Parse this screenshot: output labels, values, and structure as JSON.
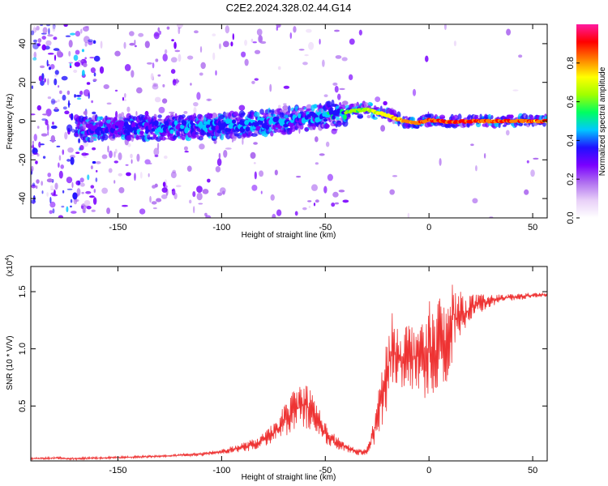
{
  "figure": {
    "title": "C2E2.2024.328.02.44.G14"
  },
  "chart_data": [
    {
      "type": "heatmap",
      "panel": "spectrogram",
      "title": "C2E2.2024.328.02.44.G14",
      "xlabel": "Height of straight line (km)",
      "ylabel": "Frequency (Hz)",
      "xlim": [
        -192,
        57
      ],
      "ylim": [
        -50,
        50
      ],
      "xticks": [
        -150,
        -100,
        -50,
        0,
        50
      ],
      "xtick_labels": [
        "-150",
        "-100",
        "-50",
        "0",
        "50"
      ],
      "yticks": [
        -40,
        -20,
        0,
        20,
        40
      ],
      "ytick_labels": [
        "-40",
        "-20",
        "0",
        "20",
        "40"
      ],
      "colorbar": {
        "label": "Normalized spectral amplitude",
        "range": [
          0.0,
          1.0
        ],
        "ticks": [
          0.0,
          0.2,
          0.4,
          0.6,
          0.8
        ],
        "tick_labels": [
          "0.0",
          "0.2",
          "0.4",
          "0.6",
          "0.8"
        ],
        "colormap": [
          "#ffffff",
          "#e8d0f8",
          "#b070f0",
          "#7a00ff",
          "#2010ff",
          "#00c8ff",
          "#00ff60",
          "#a0ff00",
          "#ffff00",
          "#ff8000",
          "#ff0000",
          "#ff1aa0"
        ]
      },
      "ridge": {
        "x": [
          -165,
          -150,
          -130,
          -110,
          -90,
          -70,
          -55,
          -45,
          -38,
          -30,
          -20,
          -12,
          -5,
          0,
          5,
          10,
          20,
          30,
          40,
          50,
          57
        ],
        "frequency": [
          -4,
          -3.5,
          -3.5,
          -3,
          -2,
          0,
          2,
          4,
          5,
          6,
          3,
          0,
          -1,
          0.5,
          0,
          -0.5,
          0,
          0,
          0,
          0,
          0
        ],
        "peak_amplitude": [
          0.35,
          0.4,
          0.45,
          0.5,
          0.5,
          0.5,
          0.5,
          0.55,
          0.65,
          0.7,
          0.8,
          0.85,
          0.9,
          0.92,
          0.9,
          0.95,
          0.95,
          0.93,
          0.92,
          0.9,
          0.9
        ]
      },
      "grid": false
    },
    {
      "type": "line",
      "panel": "snr",
      "xlabel": "Height of straight line (km)",
      "ylabel": "SNR (10 * V/V)",
      "y_multiplier_label": "(x10",
      "y_multiplier_exp": "4",
      "y_multiplier_close": ")",
      "xlim": [
        -192,
        57
      ],
      "ylim": [
        0.02,
        1.72
      ],
      "xticks": [
        -150,
        -100,
        -50,
        0,
        50
      ],
      "xtick_labels": [
        "-150",
        "-100",
        "-50",
        "0",
        "50"
      ],
      "yticks": [
        0.5,
        1.0,
        1.5
      ],
      "ytick_labels": [
        "0.5",
        "1.0",
        "1.5"
      ],
      "color": "#ee3333",
      "series": [
        {
          "x": [
            -192,
            -180,
            -170,
            -160,
            -150,
            -140,
            -130,
            -120,
            -110,
            -100,
            -95,
            -90,
            -85,
            -80,
            -75,
            -70,
            -65,
            -60,
            -55,
            -50,
            -45,
            -40,
            -35,
            -30,
            -28,
            -25,
            -22,
            -20,
            -18,
            -15,
            -12,
            -10,
            -8,
            -5,
            -3,
            0,
            3,
            5,
            8,
            10,
            12,
            14,
            16,
            18,
            20,
            25,
            30,
            35,
            40,
            45,
            50,
            57
          ],
          "y": [
            0.04,
            0.045,
            0.04,
            0.045,
            0.05,
            0.055,
            0.06,
            0.07,
            0.08,
            0.1,
            0.12,
            0.14,
            0.16,
            0.2,
            0.26,
            0.36,
            0.46,
            0.52,
            0.42,
            0.26,
            0.18,
            0.14,
            0.1,
            0.1,
            0.18,
            0.4,
            0.6,
            0.8,
            1.0,
            0.95,
            0.9,
            0.95,
            0.9,
            0.98,
            0.85,
            1.02,
            0.98,
            1.05,
            0.96,
            1.15,
            1.3,
            1.25,
            1.3,
            1.32,
            1.36,
            1.4,
            1.42,
            1.44,
            1.45,
            1.46,
            1.47,
            1.47
          ],
          "spread": [
            0.01,
            0.01,
            0.01,
            0.01,
            0.01,
            0.01,
            0.01,
            0.01,
            0.02,
            0.02,
            0.03,
            0.04,
            0.05,
            0.06,
            0.09,
            0.14,
            0.2,
            0.22,
            0.16,
            0.1,
            0.06,
            0.04,
            0.03,
            0.03,
            0.08,
            0.18,
            0.3,
            0.35,
            0.32,
            0.3,
            0.3,
            0.32,
            0.32,
            0.35,
            0.35,
            0.4,
            0.42,
            0.45,
            0.45,
            0.4,
            0.3,
            0.25,
            0.2,
            0.15,
            0.12,
            0.08,
            0.05,
            0.04,
            0.03,
            0.03,
            0.02,
            0.02
          ]
        }
      ],
      "grid": false
    }
  ]
}
